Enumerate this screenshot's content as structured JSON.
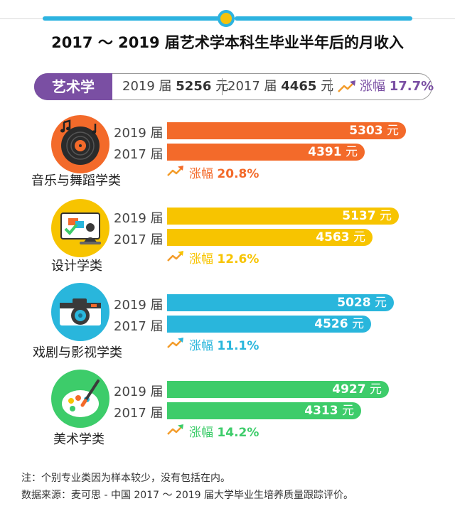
{
  "title": "2017 ～ 2019 届艺术学本科生毕业半年后的月收入",
  "summary": {
    "label": "艺术学",
    "y2019_prefix": "2019 届",
    "y2019_value": "5256",
    "y2017_prefix": "2017 届",
    "y2017_value": "4465",
    "unit": "元",
    "growth_label": "涨幅",
    "growth_value": "17.7%",
    "color": "#7a4fa3"
  },
  "year_labels": [
    "2019 届",
    "2017 届"
  ],
  "unit": "元",
  "growth_label": "涨幅",
  "chart_data": {
    "type": "bar",
    "orientation": "horizontal",
    "title": "2017 ～ 2019 届艺术学本科生毕业半年后的月收入",
    "unit": "元",
    "series_labels": [
      "2019 届",
      "2017 届"
    ],
    "categories": [
      {
        "name": "音乐与舞蹈学类",
        "icon": "vinyl-record-icon",
        "color": "#f36a2a",
        "v2019": 5303,
        "v2017": 4391,
        "growth": "20.8%"
      },
      {
        "name": "设计学类",
        "icon": "design-easel-icon",
        "color": "#f7c400",
        "v2019": 5137,
        "v2017": 4563,
        "growth": "12.6%"
      },
      {
        "name": "戏剧与影视学类",
        "icon": "camera-icon",
        "color": "#29b6dc",
        "v2019": 5028,
        "v2017": 4526,
        "growth": "11.1%"
      },
      {
        "name": "美术学类",
        "icon": "paint-palette-icon",
        "color": "#3dcc6a",
        "v2019": 4927,
        "v2017": 4313,
        "growth": "14.2%"
      }
    ]
  },
  "notes": [
    "注：个别专业类因为样本较少，没有包括在内。",
    "数据来源：麦可思 - 中国 2017 ～ 2019 届大学毕业生培养质量跟踪评价。"
  ]
}
